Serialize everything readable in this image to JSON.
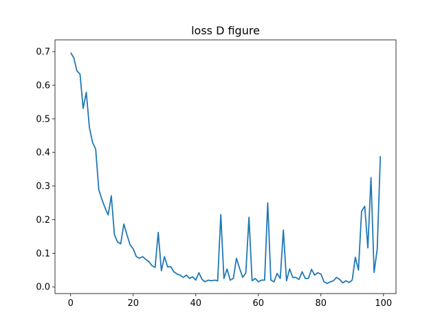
{
  "chart_data": {
    "type": "line",
    "title": "loss D figure",
    "xlabel": "",
    "ylabel": "",
    "xlim": [
      -5,
      104
    ],
    "ylim": [
      -0.02,
      0.735
    ],
    "xticks": [
      0,
      20,
      40,
      60,
      80,
      100
    ],
    "yticks": [
      0.0,
      0.1,
      0.2,
      0.3,
      0.4,
      0.5,
      0.6,
      0.7
    ],
    "ytick_labels": [
      "0.0",
      "0.1",
      "0.2",
      "0.3",
      "0.4",
      "0.5",
      "0.6",
      "0.7"
    ],
    "grid": false,
    "line_color": "#1f77b4",
    "series": [
      {
        "x": [
          0,
          1,
          2,
          3,
          4,
          5,
          6,
          7,
          8,
          9,
          10,
          11,
          12,
          13,
          14,
          15,
          16,
          17,
          18,
          19,
          20,
          21,
          22,
          23,
          24,
          25,
          26,
          27,
          28,
          29,
          30,
          31,
          32,
          33,
          34,
          35,
          36,
          37,
          38,
          39,
          40,
          41,
          42,
          43,
          44,
          45,
          46,
          47,
          48,
          49,
          50,
          51,
          52,
          53,
          54,
          55,
          56,
          57,
          58,
          59,
          60,
          61,
          62,
          63,
          64,
          65,
          66,
          67,
          68,
          69,
          70,
          71,
          72,
          73,
          74,
          75,
          76,
          77,
          78,
          79,
          80,
          81,
          82,
          83,
          84,
          85,
          86,
          87,
          88,
          89,
          90,
          91,
          92,
          93,
          94,
          95,
          96,
          97,
          98,
          99
        ],
        "values": [
          0.697,
          0.682,
          0.643,
          0.633,
          0.531,
          0.579,
          0.474,
          0.43,
          0.41,
          0.289,
          0.26,
          0.235,
          0.214,
          0.271,
          0.155,
          0.133,
          0.128,
          0.187,
          0.155,
          0.125,
          0.113,
          0.09,
          0.085,
          0.09,
          0.082,
          0.075,
          0.063,
          0.058,
          0.162,
          0.048,
          0.09,
          0.059,
          0.06,
          0.045,
          0.038,
          0.035,
          0.028,
          0.035,
          0.025,
          0.03,
          0.02,
          0.042,
          0.022,
          0.015,
          0.02,
          0.018,
          0.02,
          0.018,
          0.215,
          0.025,
          0.053,
          0.02,
          0.025,
          0.085,
          0.055,
          0.028,
          0.042,
          0.207,
          0.018,
          0.025,
          0.015,
          0.02,
          0.02,
          0.25,
          0.02,
          0.015,
          0.04,
          0.025,
          0.169,
          0.018,
          0.053,
          0.028,
          0.028,
          0.022,
          0.045,
          0.025,
          0.025,
          0.052,
          0.035,
          0.042,
          0.038,
          0.015,
          0.01,
          0.015,
          0.018,
          0.028,
          0.022,
          0.012,
          0.018,
          0.013,
          0.02,
          0.088,
          0.05,
          0.225,
          0.24,
          0.116,
          0.325,
          0.043,
          0.113,
          0.389
        ]
      }
    ]
  }
}
